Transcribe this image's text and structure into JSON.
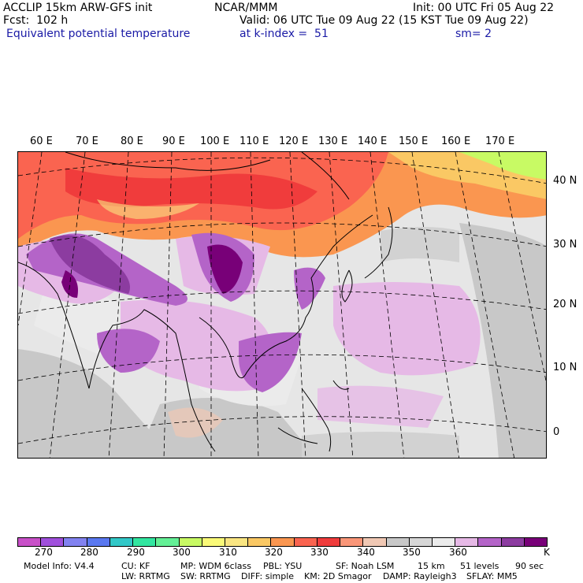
{
  "header": {
    "line1_left": "ACCLIP 15km ARW-GFS init",
    "line1_center": "NCAR/MMM",
    "line1_right": "Init: 00 UTC Fri 05 Aug 22",
    "line2_left": "Fcst:  102 h",
    "line2_right": "Valid: 06 UTC Tue 09 Aug 22 (15 KST Tue 09 Aug 22)",
    "line3_left": "Equivalent potential temperature",
    "line3_center": "at k-index =  51",
    "line3_right": "sm= 2"
  },
  "map": {
    "lon_labels": [
      "60 E",
      "70 E",
      "80 E",
      "90 E",
      "100 E",
      "110 E",
      "120 E",
      "130 E",
      "140 E",
      "150 E",
      "160 E",
      "170 E"
    ],
    "lat_labels": [
      "40 N",
      "30 N",
      "20 N",
      "10 N",
      "0"
    ]
  },
  "colorbar": {
    "colors": [
      "#c850c8",
      "#a050dc",
      "#8282f0",
      "#5a78f0",
      "#32c8c8",
      "#32e6a0",
      "#64f096",
      "#c8fa64",
      "#fafa78",
      "#fae682",
      "#fac864",
      "#fa9650",
      "#fa6450",
      "#f03c3c",
      "#fa9678",
      "#f0c8b4",
      "#c8c8c8",
      "#d7d7d7",
      "#ebebeb",
      "#e6b9e6",
      "#b464c8",
      "#8c3ca0",
      "#780078"
    ],
    "ticks": [
      "270",
      "280",
      "290",
      "300",
      "310",
      "320",
      "330",
      "340",
      "350",
      "360"
    ],
    "unit": "K"
  },
  "footer": {
    "row1": [
      "Model Info: V4.4",
      "CU: KF",
      "MP: WDM 6class",
      "PBL: YSU",
      "SF: Noah LSM",
      "15 km",
      "51 levels",
      "90 sec"
    ],
    "row2": [
      "LW: RRTMG",
      "SW: RRTMG",
      "DIFF: simple",
      "KM: 2D Smagor",
      "DAMP: Rayleigh3",
      "SFLAY: MM5"
    ]
  }
}
